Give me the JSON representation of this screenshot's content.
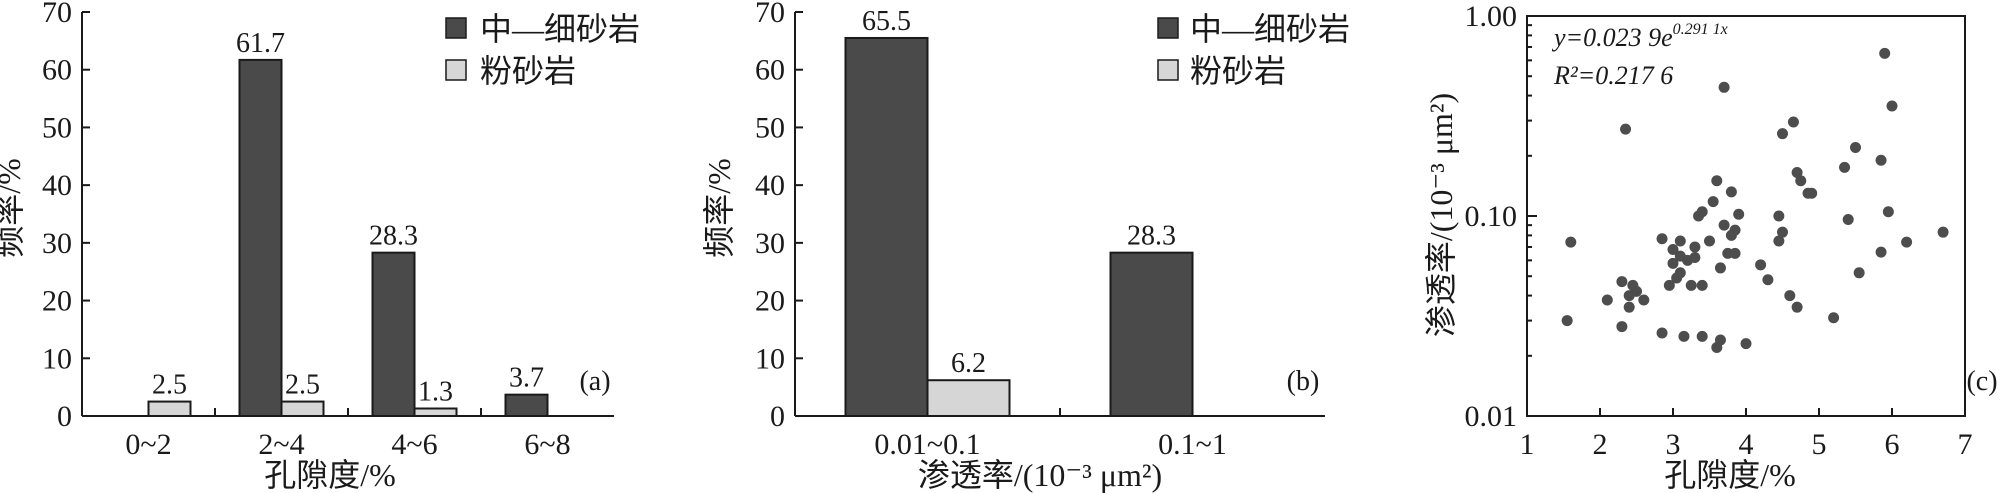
{
  "colors": {
    "dark": "#4a4a4a",
    "light": "#d6d6d6",
    "point": "#4d4d4d",
    "edge": "#1a1a1a"
  },
  "chart_data": [
    {
      "type": "bar",
      "panel": "(a)",
      "categories": [
        "0~2",
        "2~4",
        "4~6",
        "6~8"
      ],
      "series": [
        {
          "name": "中—细砂岩",
          "values": [
            null,
            61.7,
            28.3,
            3.7
          ],
          "labels": [
            "",
            "61.7",
            "28.3",
            "3.7"
          ]
        },
        {
          "name": "粉砂岩",
          "values": [
            2.5,
            2.5,
            1.3,
            null
          ],
          "labels": [
            "2.5",
            "2.5",
            "1.3",
            ""
          ]
        }
      ],
      "xlabel": "孔隙度/%",
      "ylabel": "频率/%",
      "ylim": [
        0,
        70
      ],
      "yticks": [
        "0",
        "10",
        "20",
        "30",
        "40",
        "50",
        "60",
        "70"
      ],
      "legend": "top-right"
    },
    {
      "type": "bar",
      "panel": "(b)",
      "categories": [
        "0.01~0.1",
        "0.1~1"
      ],
      "series": [
        {
          "name": "中—细砂岩",
          "values": [
            65.5,
            28.3
          ],
          "labels": [
            "65.5",
            "28.3"
          ]
        },
        {
          "name": "粉砂岩",
          "values": [
            6.2,
            null
          ],
          "labels": [
            "6.2",
            ""
          ]
        }
      ],
      "xlabel": "渗透率/(10⁻³ μm²)",
      "ylabel": "频率/%",
      "ylim": [
        0,
        70
      ],
      "yticks": [
        "0",
        "10",
        "20",
        "30",
        "40",
        "50",
        "60",
        "70"
      ],
      "legend": "top-right"
    },
    {
      "type": "scatter",
      "panel": "(c)",
      "xlabel": "孔隙度/%",
      "ylabel": "渗透率/(10⁻³ μm²)",
      "xlim": [
        1,
        7
      ],
      "ylim": [
        0.01,
        1.0
      ],
      "yscale": "log",
      "xticks": [
        "1",
        "2",
        "3",
        "4",
        "5",
        "6",
        "7"
      ],
      "yticks": [
        "0.01",
        "0.10",
        "1.00"
      ],
      "equation_y": "y=0.023 9e",
      "equation_exp": "0.291 1x",
      "equation_r2": "R²=0.217 6",
      "points": [
        [
          1.55,
          0.03
        ],
        [
          1.6,
          0.074
        ],
        [
          2.1,
          0.038
        ],
        [
          2.3,
          0.047
        ],
        [
          2.3,
          0.028
        ],
        [
          2.35,
          0.272
        ],
        [
          2.4,
          0.035
        ],
        [
          2.4,
          0.04
        ],
        [
          2.45,
          0.045
        ],
        [
          2.5,
          0.042
        ],
        [
          2.6,
          0.038
        ],
        [
          2.85,
          0.077
        ],
        [
          2.85,
          0.026
        ],
        [
          2.95,
          0.045
        ],
        [
          3.0,
          0.058
        ],
        [
          3.0,
          0.068
        ],
        [
          3.05,
          0.049
        ],
        [
          3.1,
          0.075
        ],
        [
          3.1,
          0.063
        ],
        [
          3.1,
          0.052
        ],
        [
          3.15,
          0.025
        ],
        [
          3.2,
          0.06
        ],
        [
          3.25,
          0.045
        ],
        [
          3.3,
          0.07
        ],
        [
          3.3,
          0.062
        ],
        [
          3.35,
          0.1
        ],
        [
          3.4,
          0.105
        ],
        [
          3.4,
          0.045
        ],
        [
          3.4,
          0.025
        ],
        [
          3.5,
          0.075
        ],
        [
          3.55,
          0.118
        ],
        [
          3.6,
          0.15
        ],
        [
          3.6,
          0.022
        ],
        [
          3.65,
          0.055
        ],
        [
          3.65,
          0.024
        ],
        [
          3.7,
          0.44
        ],
        [
          3.7,
          0.09
        ],
        [
          3.75,
          0.065
        ],
        [
          3.8,
          0.08
        ],
        [
          3.8,
          0.132
        ],
        [
          3.85,
          0.085
        ],
        [
          3.85,
          0.065
        ],
        [
          3.9,
          0.102
        ],
        [
          4.0,
          0.023
        ],
        [
          4.2,
          0.057
        ],
        [
          4.3,
          0.048
        ],
        [
          4.45,
          0.075
        ],
        [
          4.45,
          0.1
        ],
        [
          4.5,
          0.258
        ],
        [
          4.5,
          0.083
        ],
        [
          4.6,
          0.04
        ],
        [
          4.65,
          0.295
        ],
        [
          4.7,
          0.165
        ],
        [
          4.7,
          0.035
        ],
        [
          4.75,
          0.15
        ],
        [
          4.85,
          0.13
        ],
        [
          4.9,
          0.13
        ],
        [
          5.2,
          0.031
        ],
        [
          5.35,
          0.175
        ],
        [
          5.4,
          0.096
        ],
        [
          5.5,
          0.22
        ],
        [
          5.55,
          0.052
        ],
        [
          5.85,
          0.19
        ],
        [
          5.85,
          0.066
        ],
        [
          5.9,
          0.65
        ],
        [
          5.95,
          0.105
        ],
        [
          6.0,
          0.355
        ],
        [
          6.2,
          0.074
        ],
        [
          6.7,
          0.083
        ]
      ]
    }
  ]
}
